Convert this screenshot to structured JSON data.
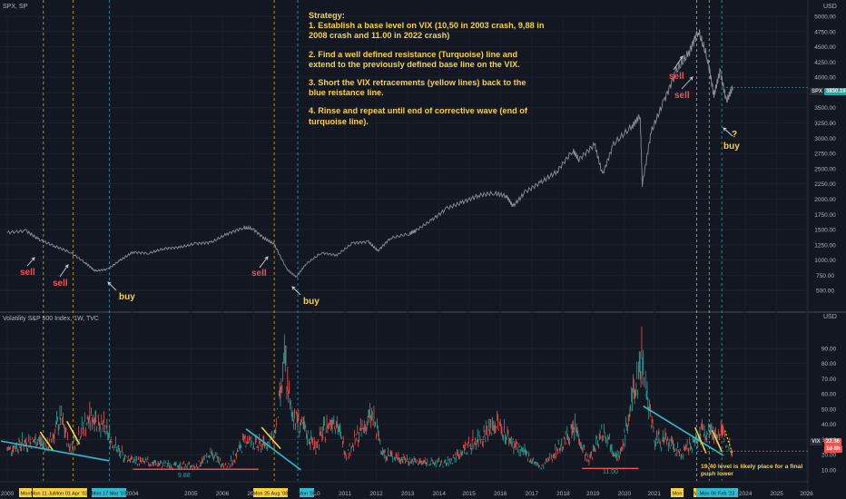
{
  "header": {
    "symbol_top": "SPX, SP",
    "symbol_bottom": "Volatility S&P 500 Index, 1W, TVC",
    "currency_top": "USD",
    "currency_bottom": "USD"
  },
  "strategy": {
    "title": "Strategy:",
    "step1": "1. Establish a base level on VIX (10,50 in 2003 crash, 9,88 in 2008 crash and 11.00 in 2022 crash)",
    "step2": "2. Find a well defined resistance (Turquoise) line and extend to the previously defined base line on the VIX.",
    "step3": "3. Short the VIX retracements (yellow lines) back to the blue reistance line.",
    "step4": "4. Rinse and repeat until end of corrective wave (end of turquoise line)."
  },
  "annotations": {
    "sell": "sell",
    "buy": "buy",
    "question": "?",
    "vix_level_1": "9.88",
    "vix_level_2": "11.00",
    "note": "19,40 level is likely place for a final push lower"
  },
  "badges": {
    "spx_label": "SPX",
    "spx_price": "3830.19",
    "vix_label": "VIX",
    "vix_price": "22.36",
    "vix_countdown": "1d 8h"
  },
  "date_flags": [
    "Mon",
    "Mon 11 Jun",
    "Mon 01 Apr '02",
    "Mon 17 Mar '03",
    "Mon 25 Aug '08",
    "Mon '09",
    "Mon",
    "Mon 1",
    "Mon 06 Feb '23"
  ],
  "colors": {
    "background": "#131722",
    "spx_line": "#8a8d96",
    "candle_up": "#26a69a",
    "candle_down": "#ef5350",
    "resistance_line": "#2fbcd0",
    "retracement_line": "#f7d23a",
    "base_line": "#ef5350",
    "strategy_text": "#f7d23a"
  },
  "chart_data": [
    {
      "type": "line",
      "title": "SPX, SP",
      "ylabel": "USD",
      "y_ticks": [
        500,
        750,
        1000,
        1250,
        1500,
        1750,
        2000,
        2250,
        2500,
        2750,
        3000,
        3250,
        3500,
        3750,
        4000,
        4250,
        4500,
        4750,
        5000
      ],
      "ylim": [
        250,
        5000
      ],
      "x_ticks": [
        "2000",
        "2004",
        "2005",
        "2006",
        "2007",
        "2010",
        "2011",
        "2012",
        "2013",
        "2014",
        "2015",
        "2016",
        "2017",
        "2018",
        "2019",
        "2020",
        "2021",
        "2024",
        "2025",
        "2026"
      ],
      "grid": true,
      "series": [
        {
          "x": [
            2000.0,
            2000.6,
            2001.0,
            2001.5,
            2002.0,
            2002.5,
            2002.8,
            2003.2,
            2003.6,
            2004.0,
            2004.5,
            2005.0,
            2005.5,
            2006.0,
            2006.5,
            2007.0,
            2007.5,
            2007.8,
            2008.2,
            2008.5,
            2008.9,
            2009.2,
            2009.5,
            2010.0,
            2010.5,
            2011.0,
            2011.5,
            2011.8,
            2012.2,
            2012.8,
            2013.0,
            2013.5,
            2014.0,
            2014.5,
            2015.0,
            2015.5,
            2015.9,
            2016.1,
            2016.5,
            2017.0,
            2017.5,
            2018.0,
            2018.2,
            2018.7,
            2018.95,
            2019.3,
            2019.9,
            2020.15,
            2020.22,
            2020.5,
            2020.9,
            2021.3,
            2021.7,
            2022.0,
            2022.3,
            2022.5,
            2022.7,
            2022.9,
            2023.1
          ],
          "y": [
            1450,
            1480,
            1340,
            1230,
            1130,
            950,
            820,
            850,
            1000,
            1130,
            1110,
            1190,
            1210,
            1270,
            1290,
            1430,
            1530,
            1520,
            1350,
            1260,
            850,
            720,
            930,
            1120,
            1080,
            1280,
            1300,
            1150,
            1360,
            1430,
            1480,
            1650,
            1850,
            1950,
            2060,
            2100,
            2050,
            1880,
            2120,
            2280,
            2450,
            2800,
            2650,
            2900,
            2400,
            2900,
            3200,
            3380,
            2240,
            3100,
            3600,
            4100,
            4400,
            4770,
            4300,
            3700,
            4100,
            3600,
            3830
          ]
        }
      ]
    },
    {
      "type": "line",
      "title": "Volatility S&P 500 Index, 1W, TVC",
      "ylabel": "USD",
      "y_ticks": [
        10,
        20,
        30,
        40,
        50,
        60,
        70,
        80,
        90
      ],
      "ylim": [
        5,
        98
      ],
      "x_ticks": [
        "2000",
        "2004",
        "2005",
        "2006",
        "2007",
        "2010",
        "2011",
        "2012",
        "2013",
        "2014",
        "2015",
        "2016",
        "2017",
        "2018",
        "2019",
        "2020",
        "2021",
        "2024",
        "2025",
        "2026"
      ],
      "grid": true,
      "series": [
        {
          "x": [
            2000.0,
            2000.5,
            2001.0,
            2001.3,
            2001.7,
            2002.0,
            2002.5,
            2002.8,
            2003.2,
            2003.6,
            2004.0,
            2005.0,
            2006.0,
            2006.5,
            2007.0,
            2007.6,
            2008.0,
            2008.5,
            2008.85,
            2009.0,
            2009.3,
            2009.8,
            2010.4,
            2010.8,
            2011.6,
            2012.0,
            2013.0,
            2014.0,
            2015.6,
            2016.1,
            2017.0,
            2018.1,
            2018.5,
            2018.95,
            2019.5,
            2020.2,
            2020.6,
            2021.0,
            2021.5,
            2022.2,
            2022.5,
            2022.8,
            2023.1
          ],
          "y": [
            23,
            27,
            29,
            25,
            43,
            24,
            40,
            45,
            33,
            20,
            16,
            13,
            12,
            20,
            11,
            30,
            25,
            30,
            80,
            50,
            40,
            25,
            45,
            20,
            45,
            20,
            15,
            14,
            40,
            27,
            11,
            37,
            15,
            36,
            17,
            82,
            30,
            28,
            20,
            36,
            34,
            32,
            22
          ]
        }
      ]
    }
  ]
}
